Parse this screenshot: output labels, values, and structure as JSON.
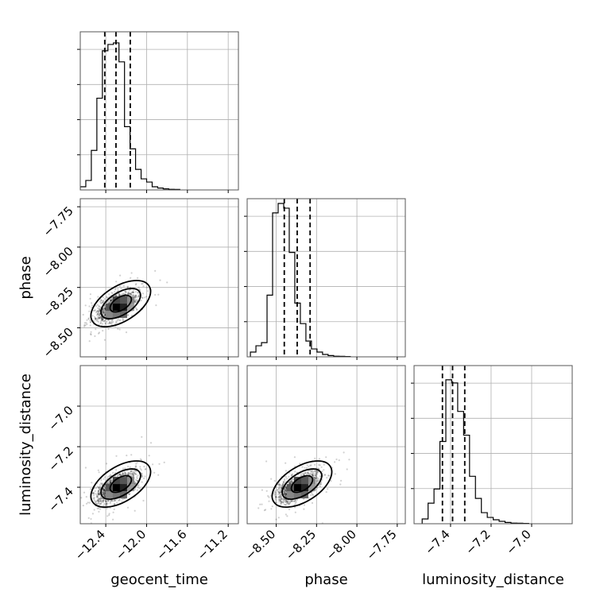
{
  "chart_data": {
    "type": "corner",
    "parameters": [
      "geocent_time",
      "phase",
      "luminosity_distance"
    ],
    "axis_ranges": {
      "geocent_time": [
        -12.65,
        -11.1
      ],
      "phase": [
        -8.68,
        -7.7
      ],
      "luminosity_distance": [
        -7.58,
        -6.8
      ]
    },
    "ticks": {
      "geocent_time": {
        "values": [
          -12.4,
          -12.0,
          -11.6,
          -11.2
        ],
        "labels": [
          "−12.4",
          "−12.0",
          "−11.6",
          "−11.2"
        ]
      },
      "phase": {
        "values": [
          -8.5,
          -8.25,
          -8.0,
          -7.75
        ],
        "labels": [
          "−8.50",
          "−8.25",
          "−8.00",
          "−7.75"
        ]
      },
      "luminosity_distance": {
        "values": [
          -7.4,
          -7.2,
          -7.0
        ],
        "labels": [
          "−7.4",
          "−7.2",
          "−7.0"
        ]
      }
    },
    "quantiles": {
      "geocent_time": [
        -12.41,
        -12.3,
        -12.16
      ],
      "phase": [
        -8.45,
        -8.37,
        -8.29
      ],
      "luminosity_distance": [
        -7.44,
        -7.39,
        -7.33
      ]
    },
    "histograms": {
      "geocent_time": {
        "start": -12.65,
        "width": 0.0542,
        "counts": [
          0.02,
          0.06,
          0.25,
          0.58,
          0.88,
          0.92,
          0.93,
          0.81,
          0.4,
          0.26,
          0.13,
          0.07,
          0.05,
          0.02,
          0.012,
          0.007,
          0.004,
          0.003
        ]
      },
      "phase": {
        "start": -8.66,
        "width": 0.0344,
        "counts": [
          0.03,
          0.07,
          0.09,
          0.39,
          0.91,
          0.97,
          0.94,
          0.66,
          0.34,
          0.21,
          0.1,
          0.05,
          0.03,
          0.015,
          0.008,
          0.004,
          0.003,
          0.002
        ]
      },
      "luminosity_distance": {
        "start": -7.54,
        "width": 0.0292,
        "counts": [
          0.03,
          0.13,
          0.22,
          0.52,
          0.91,
          0.89,
          0.71,
          0.56,
          0.3,
          0.16,
          0.07,
          0.04,
          0.025,
          0.015,
          0.008,
          0.004,
          0.003,
          0.002
        ]
      }
    },
    "correlations": [
      {
        "x": "geocent_time",
        "y": "phase",
        "center": [
          -12.3,
          -8.37
        ]
      },
      {
        "x": "geocent_time",
        "y": "luminosity_distance",
        "center": [
          -12.3,
          -7.4
        ]
      },
      {
        "x": "phase",
        "y": "luminosity_distance",
        "center": [
          -8.37,
          -7.4
        ]
      }
    ],
    "grid": true,
    "legend": "none"
  }
}
